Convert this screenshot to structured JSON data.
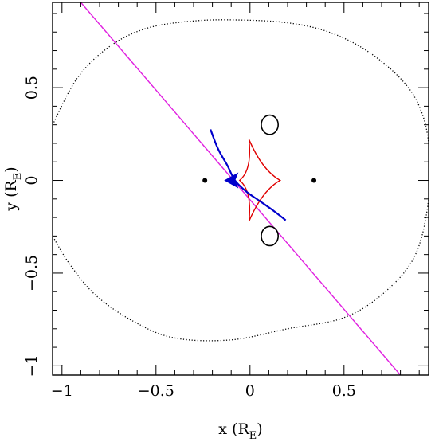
{
  "chart_data": {
    "type": "line",
    "xlabel": "x (R",
    "xlabel_sub": "E",
    "xlabel_close": ")",
    "ylabel": "y (R",
    "ylabel_sub": "E",
    "ylabel_close": ")",
    "xlim": [
      -1.05,
      0.95
    ],
    "ylim": [
      -1.05,
      0.96
    ],
    "x_ticks": [
      {
        "value": -1,
        "label": "−1"
      },
      {
        "value": -0.5,
        "label": "−0.5"
      },
      {
        "value": 0,
        "label": "0"
      },
      {
        "value": 0.5,
        "label": "0.5"
      }
    ],
    "y_ticks": [
      {
        "value": -1,
        "label": "−1"
      },
      {
        "value": -0.5,
        "label": "−0.5"
      },
      {
        "value": 0,
        "label": "0"
      },
      {
        "value": 0.5,
        "label": "0.5"
      }
    ],
    "minor_tick_step": 0.1,
    "grid": false,
    "colors": {
      "trajectory": "#e020e0",
      "caustic": "#e00000",
      "source_track": "#0000cc",
      "critical_curve": "#000000",
      "lens": "#000000"
    },
    "lens_positions": [
      {
        "x": -0.24,
        "y": 0.0
      },
      {
        "x": 0.34,
        "y": 0.0
      }
    ],
    "trajectory": {
      "x": [
        -0.9,
        0.8
      ],
      "y": [
        0.96,
        -1.05
      ]
    },
    "caustic_central": {
      "cusps": [
        {
          "x": -0.055,
          "y": 0.0
        },
        {
          "x": 0.16,
          "y": 0.0
        },
        {
          "x": -0.005,
          "y": 0.22
        },
        {
          "x": -0.005,
          "y": -0.22
        }
      ]
    },
    "caustic_small": [
      {
        "x": 0.105,
        "y": 0.3,
        "rx": 0.045,
        "ry": 0.052
      },
      {
        "x": 0.105,
        "y": -0.3,
        "rx": 0.045,
        "ry": 0.052
      }
    ],
    "source_track": {
      "x": [
        -0.21,
        -0.17,
        -0.12,
        -0.08,
        -0.02,
        0.05,
        0.12,
        0.19
      ],
      "y": [
        0.275,
        0.17,
        0.08,
        0.0,
        -0.06,
        -0.11,
        -0.16,
        -0.215
      ]
    },
    "source_marker": {
      "x": -0.07,
      "y": 0.0
    },
    "critical_curve": {
      "x": [
        -1.05,
        -0.92,
        -0.75,
        -0.55,
        -0.3,
        -0.05,
        0.2,
        0.42,
        0.62,
        0.8,
        0.9,
        0.95,
        0.95,
        0.88,
        0.72,
        0.5,
        0.2,
        -0.1,
        -0.4,
        -0.62,
        -0.82,
        -0.96,
        -1.05
      ],
      "y": [
        0.3,
        0.55,
        0.72,
        0.82,
        0.86,
        0.865,
        0.85,
        0.8,
        0.7,
        0.55,
        0.4,
        0.2,
        -0.1,
        -0.4,
        -0.6,
        -0.74,
        -0.8,
        -0.86,
        -0.85,
        -0.76,
        -0.62,
        -0.45,
        -0.3
      ]
    }
  }
}
